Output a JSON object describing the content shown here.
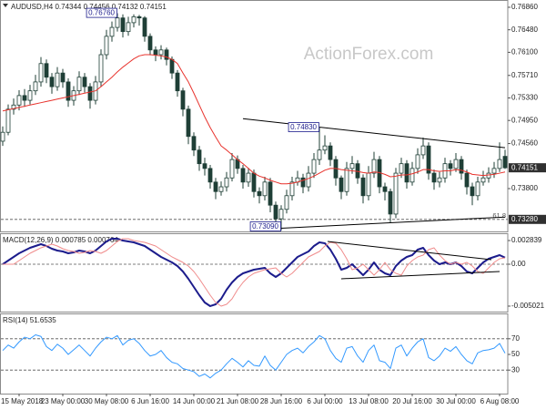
{
  "chart_data": [
    {
      "type": "candlestick",
      "title": "AUDUSD,H4  0.74344 0.74456 0.74132 0.74151",
      "watermark": "ActionForex.com",
      "categories": [
        null,
        null,
        null,
        "15 May 2018",
        null,
        null,
        null,
        null,
        null,
        null,
        null,
        "23 May 00:00",
        null,
        null,
        null,
        null,
        null,
        null,
        null,
        "30 May 08:00",
        null,
        null,
        null,
        null,
        null,
        null,
        null,
        "6 Jun 16:00",
        null,
        null,
        null,
        null,
        null,
        null,
        null,
        "14 Jun 00:00",
        null,
        null,
        null,
        null,
        null,
        null,
        null,
        "21 Jun 08:00",
        null,
        null,
        null,
        null,
        null,
        null,
        null,
        "28 Jun 16:00",
        null,
        null,
        null,
        null,
        null,
        null,
        null,
        "6 Jul 00:00",
        null,
        null,
        null,
        null,
        null,
        null,
        null,
        "13 Jul 08:00",
        null,
        null,
        null,
        null,
        null,
        null,
        null,
        "20 Jul 16:00",
        null,
        null,
        null,
        null,
        null,
        null,
        null,
        "30 Jul 00:00",
        null,
        null,
        null,
        null,
        null,
        null,
        null,
        "6 Aug 08:00",
        null
      ],
      "open": [
        0.746,
        0.7475,
        0.7514,
        0.7521,
        0.7537,
        0.7529,
        0.7545,
        0.756,
        0.7591,
        0.7568,
        0.7552,
        0.7575,
        0.756,
        0.7529,
        0.7545,
        0.7568,
        0.7552,
        0.7529,
        0.756,
        0.7606,
        0.7637,
        0.7652,
        0.7668,
        0.7645,
        0.766,
        0.767,
        0.7668,
        0.7637,
        0.7614,
        0.7606,
        0.7614,
        0.7598,
        0.7575,
        0.7545,
        0.7514,
        0.7468,
        0.7445,
        0.7422,
        0.7414,
        0.7391,
        0.7375,
        0.7383,
        0.7398,
        0.7429,
        0.7414,
        0.7391,
        0.7406,
        0.7375,
        0.7368,
        0.7391,
        0.7352,
        0.7329,
        0.7345,
        0.7368,
        0.7391,
        0.7398,
        0.7383,
        0.7406,
        0.7429,
        0.7445,
        0.7452,
        0.7429,
        0.7398,
        0.7375,
        0.7414,
        0.7422,
        0.7398,
        0.7368,
        0.7406,
        0.7429,
        0.7383,
        0.7375,
        0.7337,
        0.7406,
        0.7422,
        0.7391,
        0.7414,
        0.7437,
        0.7452,
        0.7406,
        0.7391,
        0.7398,
        0.7422,
        0.7414,
        0.7429,
        0.7406,
        0.7383,
        0.7368,
        0.7391,
        0.7398,
        0.7406,
        0.7414,
        0.74344
      ],
      "high": [
        0.7485,
        0.7522,
        0.7532,
        0.7546,
        0.7548,
        0.7555,
        0.7572,
        0.7602,
        0.7598,
        0.7575,
        0.7585,
        0.7582,
        0.7566,
        0.7553,
        0.7578,
        0.7575,
        0.7558,
        0.757,
        0.7615,
        0.7648,
        0.7662,
        0.7676,
        0.7674,
        0.767,
        0.7674,
        0.7673,
        0.7671,
        0.7642,
        0.762,
        0.7622,
        0.7618,
        0.7603,
        0.758,
        0.755,
        0.752,
        0.7475,
        0.7452,
        0.7432,
        0.742,
        0.7398,
        0.7392,
        0.7408,
        0.744,
        0.7436,
        0.742,
        0.7415,
        0.7412,
        0.7382,
        0.74,
        0.7398,
        0.7358,
        0.7352,
        0.7378,
        0.74,
        0.741,
        0.7405,
        0.7418,
        0.744,
        0.7483,
        0.747,
        0.7458,
        0.7435,
        0.7402,
        0.7425,
        0.7435,
        0.7428,
        0.7404,
        0.7418,
        0.7442,
        0.7435,
        0.739,
        0.738,
        0.7415,
        0.7432,
        0.7428,
        0.7425,
        0.7448,
        0.7466,
        0.7458,
        0.7412,
        0.7408,
        0.7432,
        0.7428,
        0.744,
        0.7435,
        0.7412,
        0.739,
        0.74,
        0.741,
        0.7416,
        0.7425,
        0.7458,
        0.74456
      ],
      "low": [
        0.7452,
        0.747,
        0.7505,
        0.7512,
        0.7518,
        0.7522,
        0.7538,
        0.7552,
        0.7558,
        0.754,
        0.7545,
        0.755,
        0.7518,
        0.752,
        0.7538,
        0.7542,
        0.7515,
        0.7522,
        0.7552,
        0.7598,
        0.7628,
        0.7645,
        0.7635,
        0.7638,
        0.7652,
        0.7655,
        0.7628,
        0.7605,
        0.7595,
        0.7598,
        0.7588,
        0.7565,
        0.7535,
        0.7502,
        0.7455,
        0.7435,
        0.741,
        0.7402,
        0.738,
        0.7362,
        0.7368,
        0.7375,
        0.7392,
        0.7405,
        0.738,
        0.7383,
        0.7365,
        0.7355,
        0.736,
        0.734,
        0.7315,
        0.7309,
        0.7338,
        0.736,
        0.7385,
        0.7372,
        0.7375,
        0.7398,
        0.742,
        0.7438,
        0.7418,
        0.7385,
        0.7362,
        0.7368,
        0.7405,
        0.7388,
        0.7355,
        0.736,
        0.7398,
        0.7372,
        0.736,
        0.7322,
        0.733,
        0.7398,
        0.738,
        0.7385,
        0.7405,
        0.743,
        0.7395,
        0.7378,
        0.7382,
        0.739,
        0.7402,
        0.7408,
        0.7395,
        0.737,
        0.7352,
        0.736,
        0.7385,
        0.739,
        0.7398,
        0.7408,
        0.74132
      ],
      "close": [
        0.7475,
        0.7514,
        0.7521,
        0.7537,
        0.7529,
        0.7545,
        0.756,
        0.7591,
        0.7568,
        0.7552,
        0.7575,
        0.756,
        0.7529,
        0.7545,
        0.7568,
        0.7552,
        0.7529,
        0.756,
        0.7606,
        0.7637,
        0.7652,
        0.7668,
        0.7645,
        0.766,
        0.767,
        0.7668,
        0.7637,
        0.7614,
        0.7606,
        0.7614,
        0.7598,
        0.7575,
        0.7545,
        0.7514,
        0.7468,
        0.7445,
        0.7422,
        0.7414,
        0.7391,
        0.7375,
        0.7383,
        0.7398,
        0.7429,
        0.7414,
        0.7391,
        0.7406,
        0.7375,
        0.7368,
        0.7391,
        0.7352,
        0.7329,
        0.7345,
        0.7368,
        0.7391,
        0.7398,
        0.7383,
        0.7406,
        0.7429,
        0.7445,
        0.7452,
        0.7429,
        0.7398,
        0.7375,
        0.7414,
        0.7422,
        0.7398,
        0.7368,
        0.7406,
        0.7429,
        0.7383,
        0.7375,
        0.7337,
        0.7406,
        0.7422,
        0.7391,
        0.7414,
        0.7437,
        0.7452,
        0.7406,
        0.7391,
        0.7398,
        0.7422,
        0.7414,
        0.7429,
        0.7406,
        0.7383,
        0.7368,
        0.7391,
        0.7398,
        0.7406,
        0.7414,
        0.7429,
        0.74151
      ],
      "up_color": "#ffffff",
      "down_color": "#1f3f36",
      "candle_stroke": "#1f3f36",
      "series": [
        {
          "color": "#e8322c",
          "width": 1,
          "values": [
            0.7511,
            0.7513,
            0.7515,
            0.7517,
            0.7519,
            0.7521,
            0.7523,
            0.7525,
            0.7527,
            0.7529,
            0.7531,
            0.7533,
            0.7535,
            0.7537,
            0.7539,
            0.7541,
            0.7543,
            0.7545,
            0.7552,
            0.756,
            0.7568,
            0.7577,
            0.7585,
            0.7592,
            0.7599,
            0.7604,
            0.7606,
            0.7606,
            0.7605,
            0.7604,
            0.7602,
            0.7598,
            0.7591,
            0.7575,
            0.756,
            0.7541,
            0.7521,
            0.7501,
            0.7483,
            0.7467,
            0.7452,
            0.7445,
            0.7437,
            0.7429,
            0.7422,
            0.7414,
            0.7406,
            0.7401,
            0.7398,
            0.7394,
            0.7391,
            0.7388,
            0.7388,
            0.7389,
            0.7391,
            0.7394,
            0.7397,
            0.7401,
            0.7406,
            0.7411,
            0.7414,
            0.7414,
            0.7412,
            0.7411,
            0.741,
            0.7409,
            0.7407,
            0.7406,
            0.7408,
            0.7407,
            0.7404,
            0.74,
            0.7401,
            0.7403,
            0.7403,
            0.7405,
            0.7408,
            0.7412,
            0.7412,
            0.741,
            0.7409,
            0.741,
            0.741,
            0.7412,
            0.7411,
            0.7408,
            0.7404,
            0.7403,
            0.7402,
            0.7403,
            0.7404,
            0.7406,
            0.7408
          ]
        }
      ],
      "trendlines": [
        {
          "x": [
            44,
            92
          ],
          "y": [
            0.7498,
            0.7449
          ],
          "color": "#000000"
        },
        {
          "x": [
            51,
            92
          ],
          "y": [
            0.7313,
            0.7332
          ],
          "color": "#000000"
        }
      ],
      "levels": [
        {
          "value": 0.7328,
          "label": "61.8"
        }
      ],
      "annotations": [
        {
          "label": "0.76760",
          "index": 21,
          "value": 0.7676
        },
        {
          "label": "0.74830",
          "index": 58,
          "value": 0.7483
        },
        {
          "label": "0.73090",
          "index": 51,
          "value": 0.7309
        }
      ],
      "price_markers": [
        {
          "value": 0.74151,
          "label": "0.74151",
          "color": "#303030"
        },
        {
          "value": 0.7328,
          "label": "0.73280",
          "color": "#303030"
        }
      ],
      "ylim": [
        0.73077,
        0.76952
      ],
      "yticks": [
        {
          "value": 0.7686,
          "label": "0.76860"
        },
        {
          "value": 0.7648,
          "label": "0.76480"
        },
        {
          "value": 0.761,
          "label": "0.76100"
        },
        {
          "value": 0.7571,
          "label": "0.75710"
        },
        {
          "value": 0.7533,
          "label": "0.75330"
        },
        {
          "value": 0.7495,
          "label": "0.74950"
        },
        {
          "value": 0.7456,
          "label": "0.74560"
        },
        {
          "value": 0.738,
          "label": "0.73800"
        }
      ]
    },
    {
      "type": "line",
      "title": "MACD(12,26,9) 0.000785 0.000764",
      "series": [
        {
          "color": "#1c1c8c",
          "width": 2,
          "values": [
            0,
            0.000437,
            0.000874,
            0.00131,
            0.001638,
            0.001966,
            0.002184,
            0.002402,
            0.002184,
            0.001856,
            0.001638,
            0.001529,
            0.00131,
            0.00142,
            0.001638,
            0.001529,
            0.00131,
            0.001638,
            0.002184,
            0.00273,
            0.003058,
            0.003058,
            0.002839,
            0.00273,
            0.002621,
            0.002402,
            0.002184,
            0.001747,
            0.00131,
            0.000874,
            0.000546,
            0.000218,
            -0.000218,
            -0.000874,
            -0.001747,
            -0.00273,
            -0.003713,
            -0.004586,
            -0.005021,
            -0.004805,
            -0.00415,
            -0.003058,
            -0.002184,
            -0.001529,
            -0.001092,
            -0.000874,
            -0.000655,
            -0.000546,
            -0.000437,
            -0.001092,
            -0.001529,
            -0.001092,
            -0.000437,
            0.000218,
            0.000874,
            0.001201,
            0.001529,
            0.002184,
            0.002621,
            0.002512,
            0.001747,
            0.000655,
            -0.000655,
            -0.000437,
            0,
            -0.000655,
            -0.00131,
            -0.000655,
            0.000218,
            -0.000655,
            -0.001092,
            -0.00131,
            -0.000218,
            0.000437,
            0.000874,
            0.001092,
            0.001747,
            0.001966,
            0.001092,
            0.000437,
            0,
            0.000218,
            0,
            0.000218,
            -0.000218,
            -0.000874,
            -0.001092,
            -0.000437,
            0.000218,
            0.000655,
            0.000874,
            0.001092,
            0.000785
          ]
        },
        {
          "color": "#f08c8c",
          "width": 1,
          "values": [
            0,
            0,
            0,
            0.000437,
            0.000874,
            0.00131,
            0.001638,
            0.001966,
            0.002184,
            0.002402,
            0.002184,
            0.001856,
            0.001638,
            0.001529,
            0.00131,
            0.00142,
            0.001638,
            0.001529,
            0.00131,
            0.001638,
            0.002184,
            0.00273,
            0.003058,
            0.003058,
            0.002839,
            0.00273,
            0.002621,
            0.002402,
            0.002184,
            0.001747,
            0.00131,
            0.000874,
            0.000546,
            0.000218,
            -0.000218,
            -0.000874,
            -0.001747,
            -0.00273,
            -0.003713,
            -0.004586,
            -0.005021,
            -0.004805,
            -0.00415,
            -0.003058,
            -0.002184,
            -0.001529,
            -0.001092,
            -0.000874,
            -0.000655,
            -0.000546,
            -0.000437,
            -0.001092,
            -0.001529,
            -0.001092,
            -0.000437,
            0.000218,
            0.000874,
            0.001201,
            0.001529,
            0.002184,
            0.002621,
            0.002512,
            0.001747,
            0.000655,
            -0.000655,
            -0.000437,
            0,
            -0.000655,
            -0.00131,
            -0.000655,
            0.000218,
            -0.000655,
            -0.001092,
            -0.00131,
            -0.000218,
            0.000437,
            0.000874,
            0.001092,
            0.001747,
            0.001966,
            0.001092,
            0.000437,
            0,
            0.000218,
            0,
            0.000218,
            -0.000218,
            -0.000874,
            -0.001092,
            -0.000437,
            0.000218,
            0.000655,
            0.000764
          ]
        }
      ],
      "trendlines": [
        {
          "x": [
            59.5,
            89.5
          ],
          "y": [
            0.00273,
            0.000546
          ],
          "color": "#000000"
        },
        {
          "x": [
            62,
            91
          ],
          "y": [
            -0.001747,
            -0.000874
          ],
          "color": "#000000"
        }
      ],
      "levels": [
        0
      ],
      "ylim": [
        -0.005678,
        0.003494
      ],
      "yticks": [
        0.002839,
        {
          "value": 0,
          "label": "0.00"
        },
        -0.005021
      ]
    },
    {
      "type": "line",
      "title": "RSI(14) 51.6535",
      "series": [
        {
          "color": "#3399ff",
          "width": 1,
          "values": [
            55,
            62,
            58,
            66,
            72,
            70,
            75,
            73,
            60,
            55,
            63,
            58,
            50,
            56,
            62,
            55,
            48,
            58,
            66,
            72,
            70,
            74,
            62,
            68,
            70,
            64,
            55,
            48,
            50,
            55,
            46,
            40,
            38,
            32,
            30,
            28,
            22,
            25,
            20,
            26,
            30,
            38,
            45,
            40,
            34,
            42,
            36,
            35,
            48,
            36,
            30,
            40,
            50,
            55,
            58,
            52,
            60,
            66,
            74,
            70,
            55,
            45,
            40,
            58,
            60,
            48,
            40,
            55,
            62,
            42,
            40,
            32,
            58,
            62,
            48,
            58,
            66,
            70,
            46,
            42,
            48,
            58,
            54,
            60,
            50,
            42,
            38,
            52,
            55,
            56,
            58,
            64,
            51.6535
          ]
        }
      ],
      "levels": [
        30,
        70
      ],
      "ylim": [
        0,
        100
      ],
      "yticks": [
        70,
        50,
        30
      ]
    }
  ]
}
